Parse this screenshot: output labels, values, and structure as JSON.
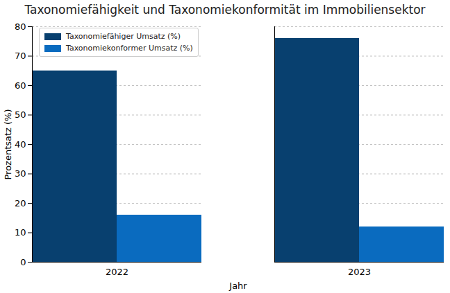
{
  "chart_data": {
    "type": "bar",
    "title": "Taxonomiefähigkeit und Taxonomiekonformität im Immobiliensektor",
    "x_label": "Jahr",
    "y_label": "Prozentsatz (%)",
    "categories": [
      "2022",
      "2023"
    ],
    "series": [
      {
        "name": "Taxonomiefähiger Umsatz (%)",
        "color": "#08406f",
        "values": [
          65,
          76
        ]
      },
      {
        "name": "Taxonomiekonformer Umsatz (%)",
        "color": "#0a6bbf",
        "values": [
          16,
          12
        ]
      }
    ],
    "ylim": [
      0,
      80
    ],
    "yticks": [
      0,
      10,
      20,
      30,
      40,
      50,
      60,
      70,
      80
    ],
    "grid": true,
    "legend": "upper left"
  }
}
